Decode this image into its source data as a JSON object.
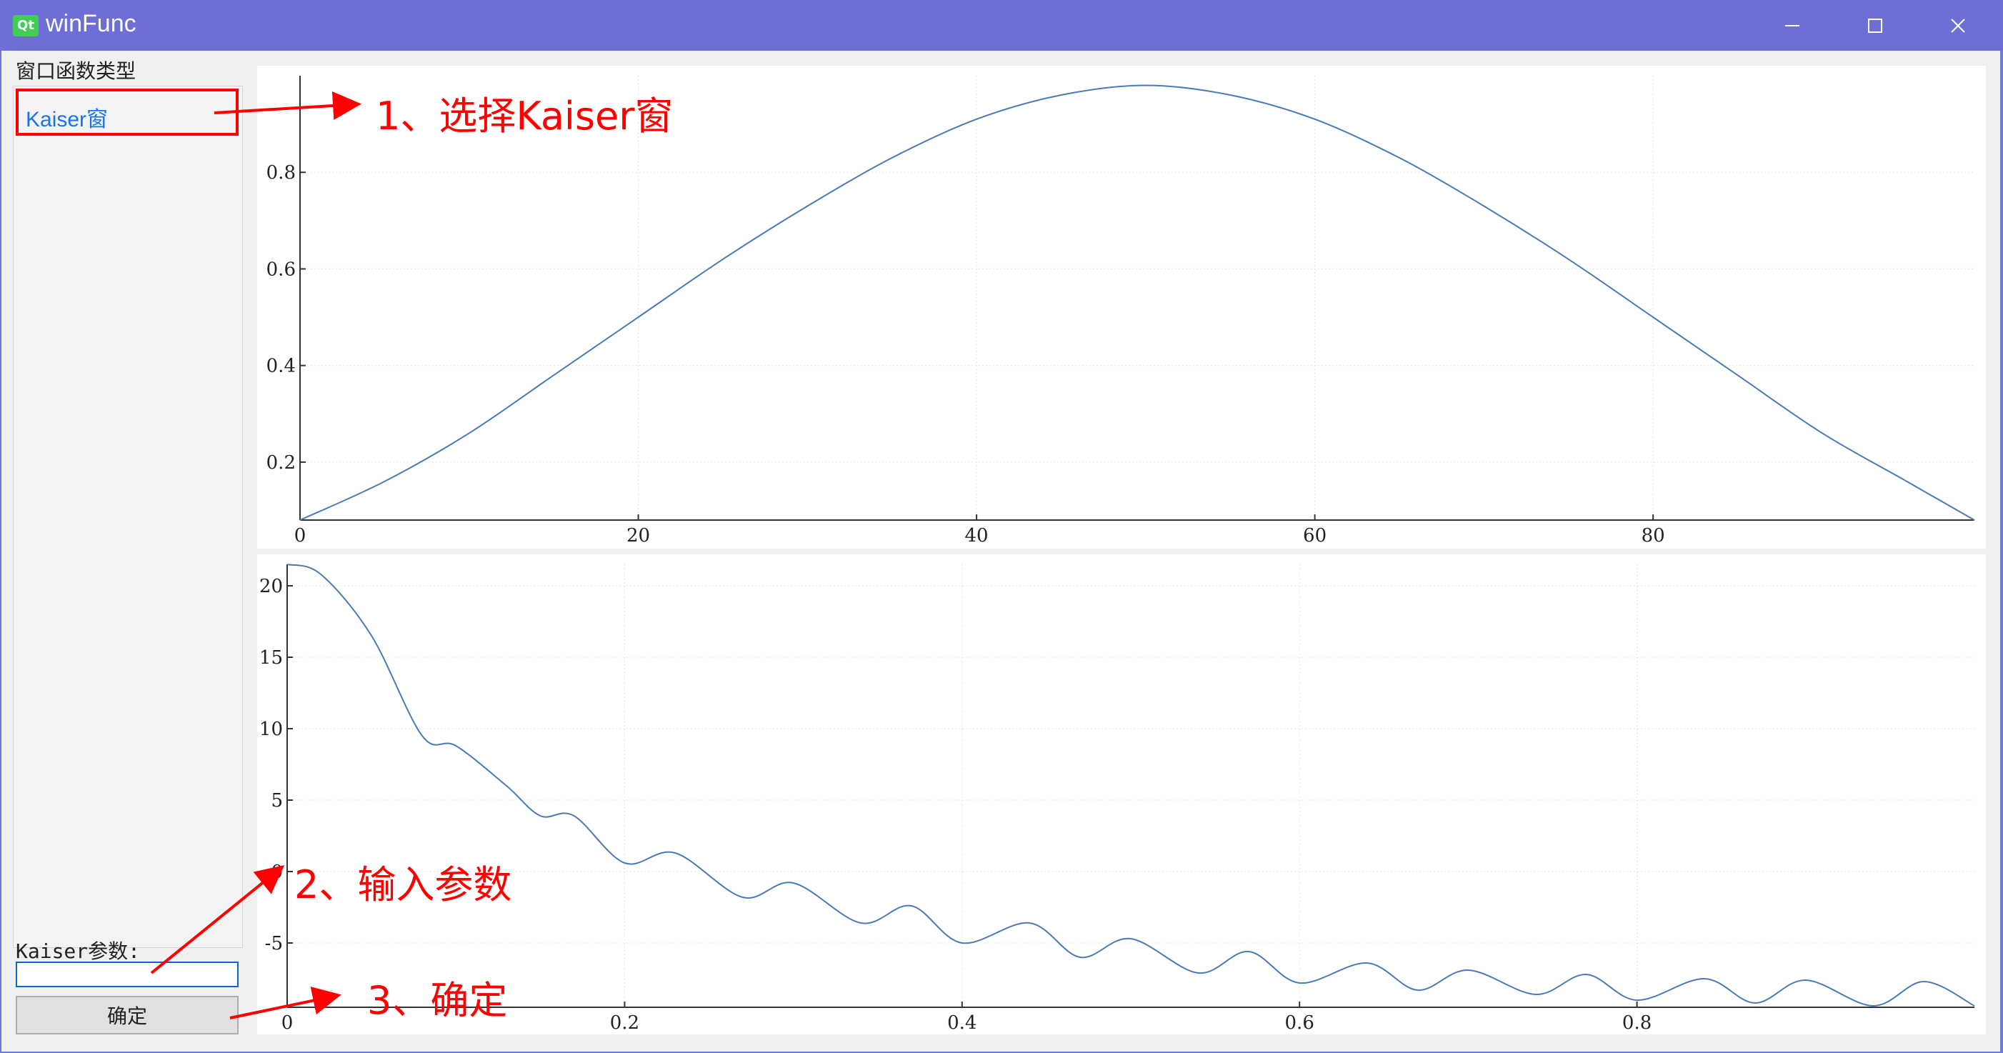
{
  "window": {
    "title": "winFunc",
    "app_icon": "Qt",
    "controls": [
      "minimize-icon",
      "maximize-icon",
      "close-icon"
    ]
  },
  "sidebar": {
    "group_label": "窗口函数类型",
    "items": [
      {
        "label": "Kaiser窗",
        "selected": true
      }
    ],
    "param_label": "Kaiser参数:",
    "param_value": "",
    "confirm_label": "确定"
  },
  "annotations": {
    "step1": "1、选择Kaiser窗",
    "step2": "2、输入参数",
    "step3": "3、确定",
    "color": "#ff0000"
  },
  "chart_data": [
    {
      "type": "line",
      "title": "",
      "xlabel": "",
      "ylabel": "",
      "xlim": [
        0,
        99
      ],
      "ylim": [
        0.08,
        1.0
      ],
      "xticks": [
        "0",
        "20",
        "40",
        "60",
        "80"
      ],
      "yticks": [
        "0.2",
        "0.4",
        "0.6",
        "0.8"
      ],
      "grid": true,
      "color": "#4a7ab5",
      "series": [
        {
          "x": [
            0,
            5,
            10,
            15,
            20,
            25,
            30,
            35,
            40,
            45,
            50,
            55,
            60,
            65,
            70,
            75,
            80,
            85,
            90,
            95,
            99
          ],
          "values": [
            0.08,
            0.16,
            0.26,
            0.38,
            0.5,
            0.62,
            0.73,
            0.83,
            0.91,
            0.96,
            0.98,
            0.96,
            0.91,
            0.83,
            0.73,
            0.62,
            0.5,
            0.38,
            0.26,
            0.16,
            0.08
          ]
        }
      ]
    },
    {
      "type": "line",
      "title": "",
      "xlabel": "",
      "ylabel": "",
      "xlim": [
        0,
        1.0
      ],
      "ylim": [
        -9.5,
        21.5
      ],
      "xticks": [
        "0",
        "0.2",
        "0.4",
        "0.6",
        "0.8"
      ],
      "yticks": [
        "20",
        "15",
        "10",
        "5",
        "0",
        "-5"
      ],
      "grid": true,
      "color": "#4a7ab5",
      "series": [
        {
          "x": [
            0,
            0.02,
            0.05,
            0.08,
            0.1,
            0.13,
            0.15,
            0.17,
            0.2,
            0.23,
            0.27,
            0.3,
            0.34,
            0.37,
            0.4,
            0.44,
            0.47,
            0.5,
            0.54,
            0.57,
            0.6,
            0.64,
            0.67,
            0.7,
            0.74,
            0.77,
            0.8,
            0.84,
            0.87,
            0.9,
            0.94,
            0.97,
            1.0
          ],
          "values": [
            21.5,
            20.8,
            16.5,
            9.5,
            8.8,
            6.0,
            3.9,
            3.9,
            0.6,
            1.3,
            -1.8,
            -0.8,
            -3.6,
            -2.4,
            -5.0,
            -3.6,
            -6.0,
            -4.7,
            -7.1,
            -5.6,
            -7.8,
            -6.4,
            -8.3,
            -6.9,
            -8.6,
            -7.2,
            -9.0,
            -7.5,
            -9.2,
            -7.6,
            -9.4,
            -7.7,
            -9.4
          ]
        }
      ]
    }
  ]
}
